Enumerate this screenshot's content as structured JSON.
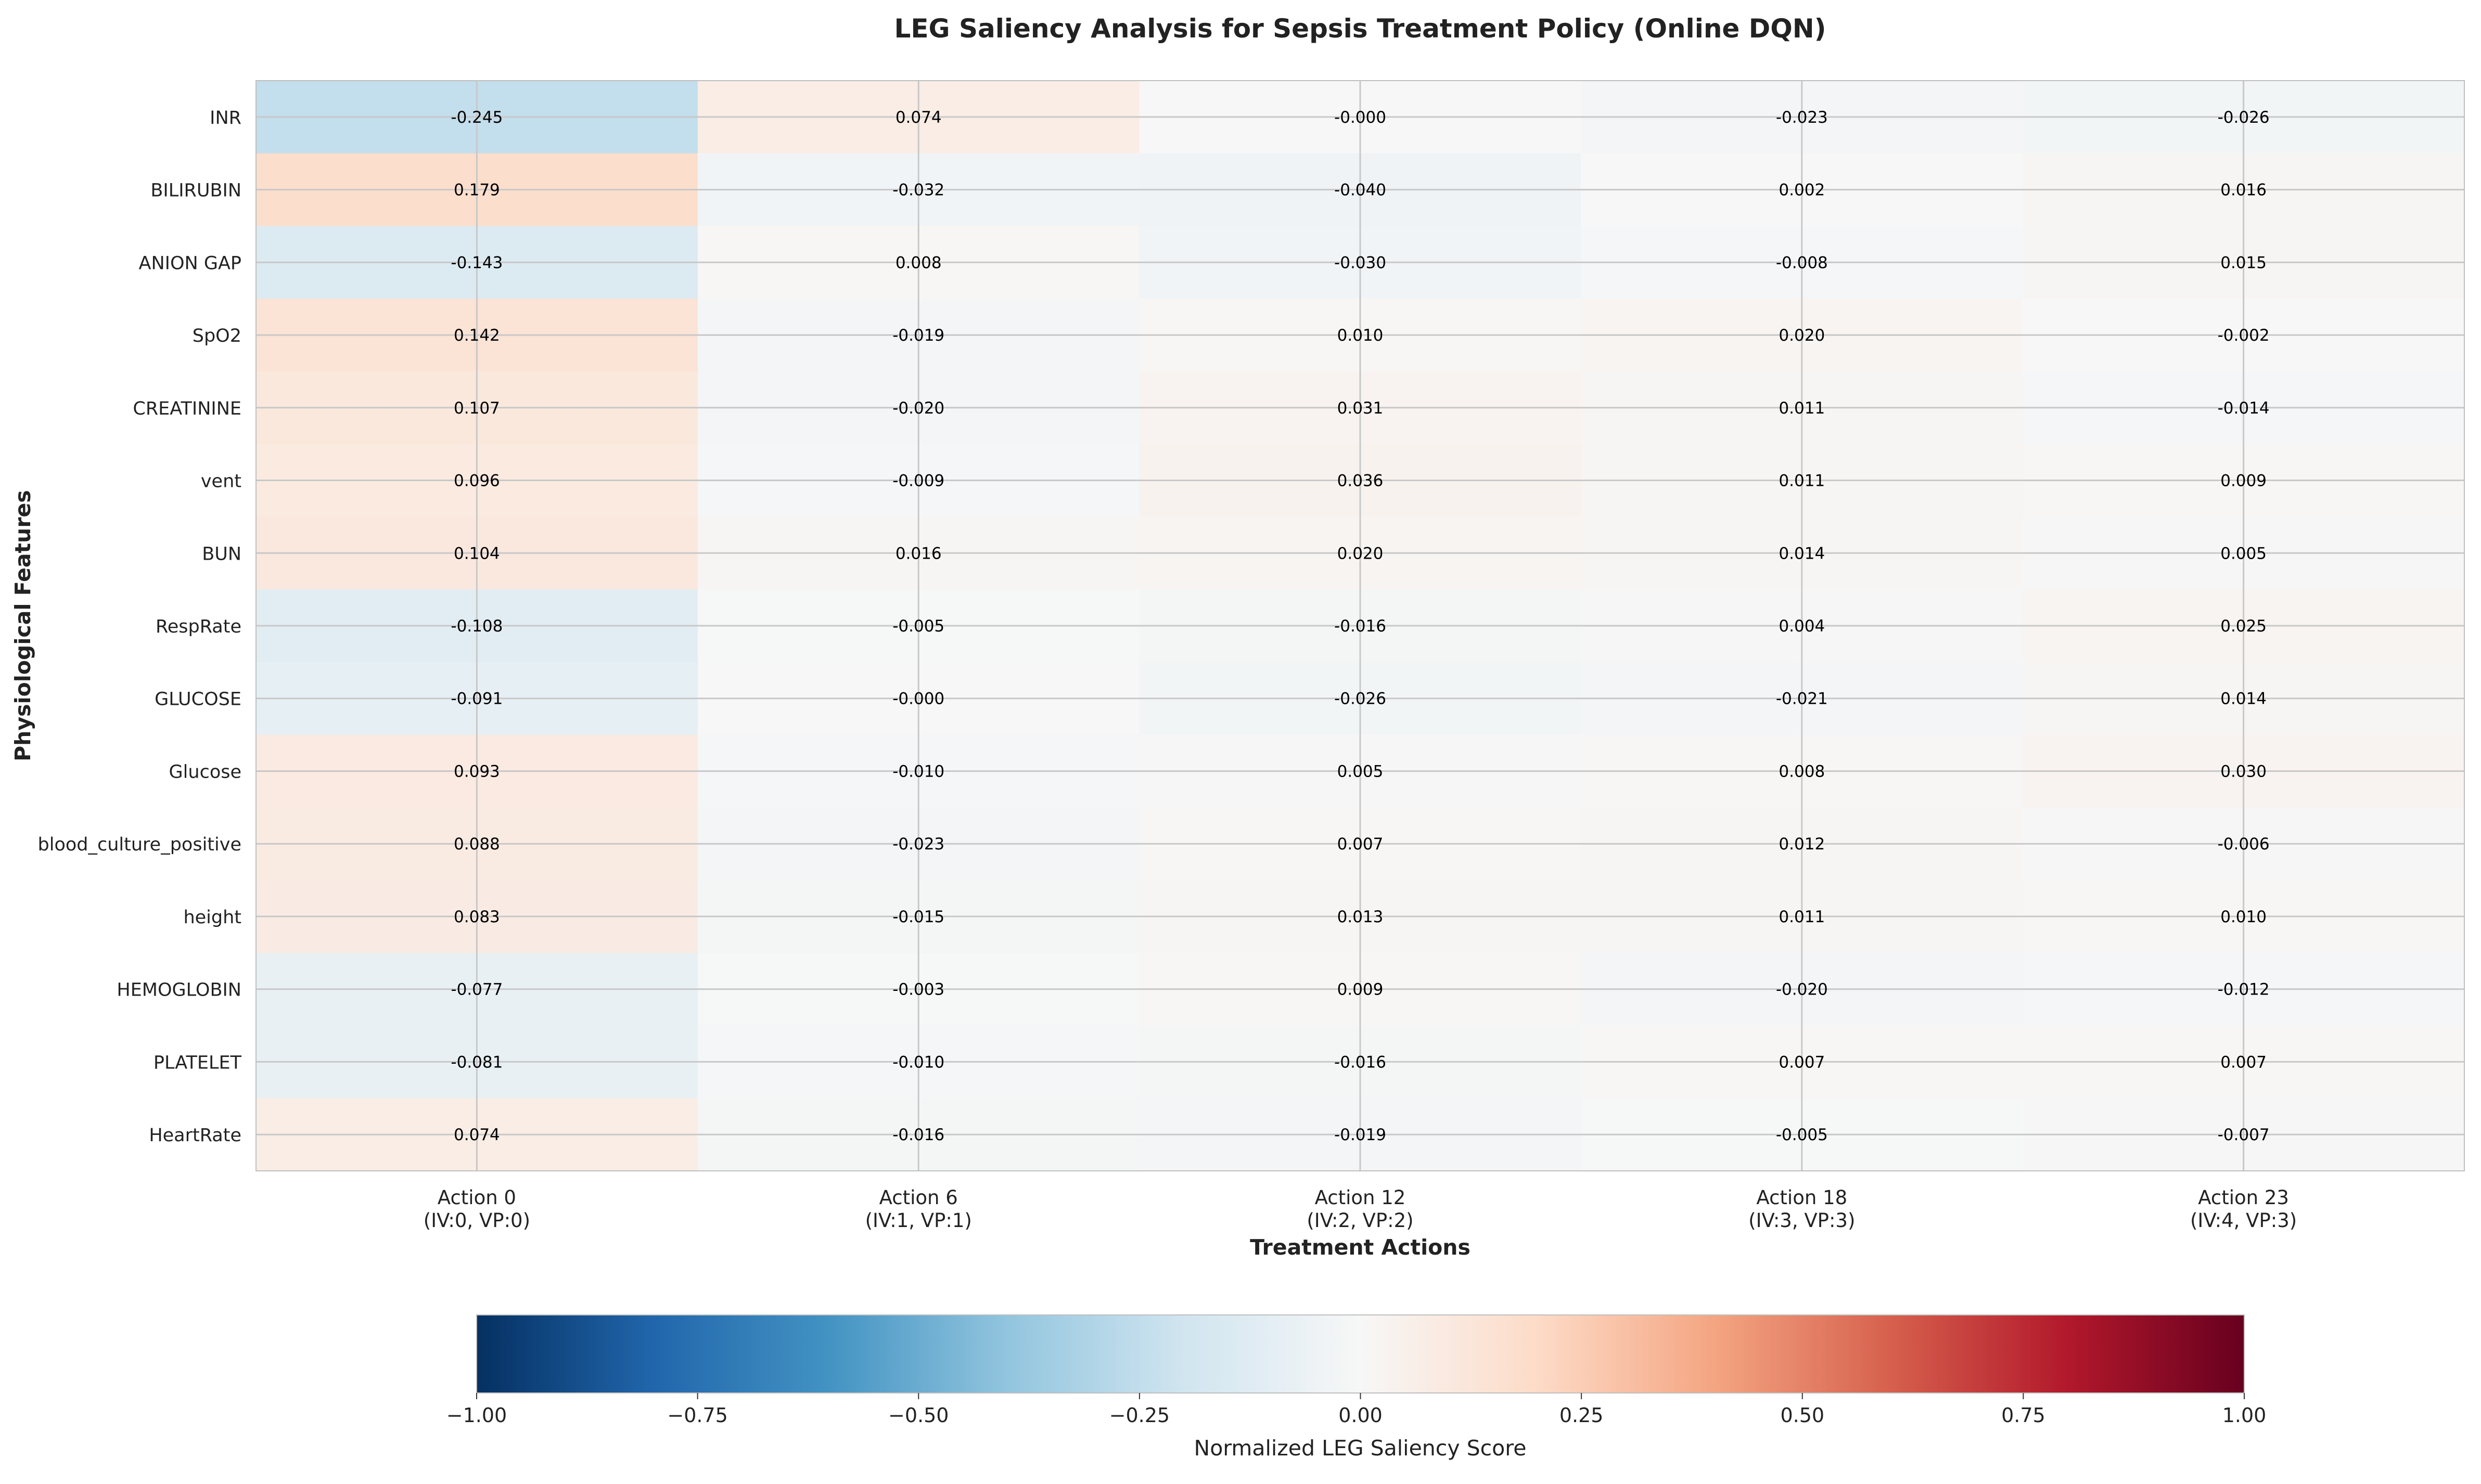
{
  "chart_data": {
    "type": "heatmap",
    "title": "LEG Saliency Analysis for Sepsis Treatment Policy (Online DQN)",
    "xlabel": "Treatment Actions",
    "ylabel": "Physiological Features",
    "columns": [
      {
        "label": "Action 0",
        "sublabel": "(IV:0, VP:0)"
      },
      {
        "label": "Action 6",
        "sublabel": "(IV:1, VP:1)"
      },
      {
        "label": "Action 12",
        "sublabel": "(IV:2, VP:2)"
      },
      {
        "label": "Action 18",
        "sublabel": "(IV:3, VP:3)"
      },
      {
        "label": "Action 23",
        "sublabel": "(IV:4, VP:3)"
      }
    ],
    "rows": [
      "INR",
      "BILIRUBIN",
      "ANION GAP",
      "SpO2",
      "CREATININE",
      "vent",
      "BUN",
      "RespRate",
      "GLUCOSE",
      "Glucose",
      "blood_culture_positive",
      "height",
      "HEMOGLOBIN",
      "PLATELET",
      "HeartRate"
    ],
    "values": [
      [
        -0.245,
        0.074,
        -0.0,
        -0.023,
        -0.026
      ],
      [
        0.179,
        -0.032,
        -0.04,
        0.002,
        0.016
      ],
      [
        -0.143,
        0.008,
        -0.03,
        -0.008,
        0.015
      ],
      [
        0.142,
        -0.019,
        0.01,
        0.02,
        -0.002
      ],
      [
        0.107,
        -0.02,
        0.031,
        0.011,
        -0.014
      ],
      [
        0.096,
        -0.009,
        0.036,
        0.011,
        0.009
      ],
      [
        0.104,
        0.016,
        0.02,
        0.014,
        0.005
      ],
      [
        -0.108,
        -0.005,
        -0.016,
        0.004,
        0.025
      ],
      [
        -0.091,
        -0.0,
        -0.026,
        -0.021,
        0.014
      ],
      [
        0.093,
        -0.01,
        0.005,
        0.008,
        0.03
      ],
      [
        0.088,
        -0.023,
        0.007,
        0.012,
        -0.006
      ],
      [
        0.083,
        -0.015,
        0.013,
        0.011,
        0.01
      ],
      [
        -0.077,
        -0.003,
        0.009,
        -0.02,
        -0.012
      ],
      [
        -0.081,
        -0.01,
        -0.016,
        0.007,
        0.007
      ],
      [
        0.074,
        -0.016,
        -0.019,
        -0.005,
        -0.007
      ]
    ],
    "value_labels": [
      [
        "-0.245",
        "0.074",
        "-0.000",
        "-0.023",
        "-0.026"
      ],
      [
        "0.179",
        "-0.032",
        "-0.040",
        "0.002",
        "0.016"
      ],
      [
        "-0.143",
        "0.008",
        "-0.030",
        "-0.008",
        "0.015"
      ],
      [
        "0.142",
        "-0.019",
        "0.010",
        "0.020",
        "-0.002"
      ],
      [
        "0.107",
        "-0.020",
        "0.031",
        "0.011",
        "-0.014"
      ],
      [
        "0.096",
        "-0.009",
        "0.036",
        "0.011",
        "0.009"
      ],
      [
        "0.104",
        "0.016",
        "0.020",
        "0.014",
        "0.005"
      ],
      [
        "-0.108",
        "-0.005",
        "-0.016",
        "0.004",
        "0.025"
      ],
      [
        "-0.091",
        "-0.000",
        "-0.026",
        "-0.021",
        "0.014"
      ],
      [
        "0.093",
        "-0.010",
        "0.005",
        "0.008",
        "0.030"
      ],
      [
        "0.088",
        "-0.023",
        "0.007",
        "0.012",
        "-0.006"
      ],
      [
        "0.083",
        "-0.015",
        "0.013",
        "0.011",
        "0.010"
      ],
      [
        "-0.077",
        "-0.003",
        "0.009",
        "-0.020",
        "-0.012"
      ],
      [
        "-0.081",
        "-0.010",
        "-0.016",
        "0.007",
        "0.007"
      ],
      [
        "0.074",
        "-0.016",
        "-0.019",
        "-0.005",
        "-0.007"
      ]
    ],
    "colormap": "RdBu_r",
    "colorbar": {
      "label": "Normalized LEG Saliency Score",
      "range": [
        -1.0,
        1.0
      ],
      "ticks": [
        -1.0,
        -0.75,
        -0.5,
        -0.25,
        0.0,
        0.25,
        0.5,
        0.75,
        1.0
      ],
      "tick_labels": [
        "−1.00",
        "−0.75",
        "−0.50",
        "−0.25",
        "0.00",
        "0.25",
        "0.50",
        "0.75",
        "1.00"
      ],
      "orientation": "horizontal",
      "position": "bottom"
    },
    "grid": true,
    "colors": {
      "stops": [
        "#053061",
        "#2166ac",
        "#4393c3",
        "#92c5de",
        "#d1e5f0",
        "#f7f7f7",
        "#fddbc7",
        "#f4a582",
        "#d6604d",
        "#b2182b",
        "#67001f"
      ],
      "grid": "#c8c8c8",
      "frame": "#bfbfbf"
    }
  }
}
